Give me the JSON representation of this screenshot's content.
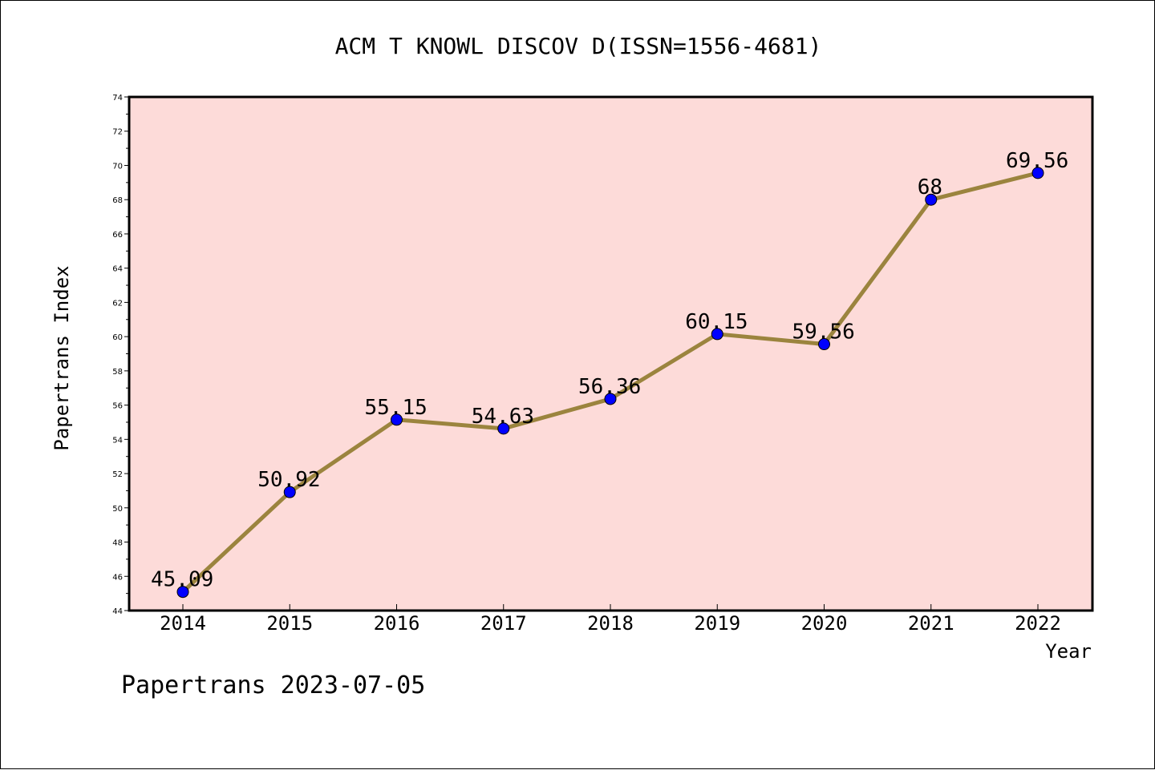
{
  "chart_data": {
    "type": "line",
    "title": "ACM T KNOWL DISCOV D(ISSN=1556-4681)",
    "xlabel": "Year",
    "ylabel": "Papertrans Index",
    "categories": [
      "2014",
      "2015",
      "2016",
      "2017",
      "2018",
      "2019",
      "2020",
      "2021",
      "2022"
    ],
    "values": [
      45.09,
      50.92,
      55.15,
      54.63,
      56.36,
      60.15,
      59.56,
      68,
      69.56
    ],
    "data_labels": [
      "45.09",
      "50.92",
      "55.15",
      "54.63",
      "56.36",
      "60.15",
      "59.56",
      "68",
      "69.56"
    ],
    "ylim": [
      44,
      74
    ],
    "yticks": [
      "44",
      "46",
      "48",
      "50",
      "52",
      "54",
      "56",
      "58",
      "60",
      "62",
      "64",
      "66",
      "68",
      "70",
      "72",
      "74"
    ],
    "grid": false,
    "colors": {
      "plot_background": "#fddbd9",
      "line": "#9b843e",
      "marker": "#0000ff"
    }
  },
  "footer": "Papertrans 2023-07-05"
}
